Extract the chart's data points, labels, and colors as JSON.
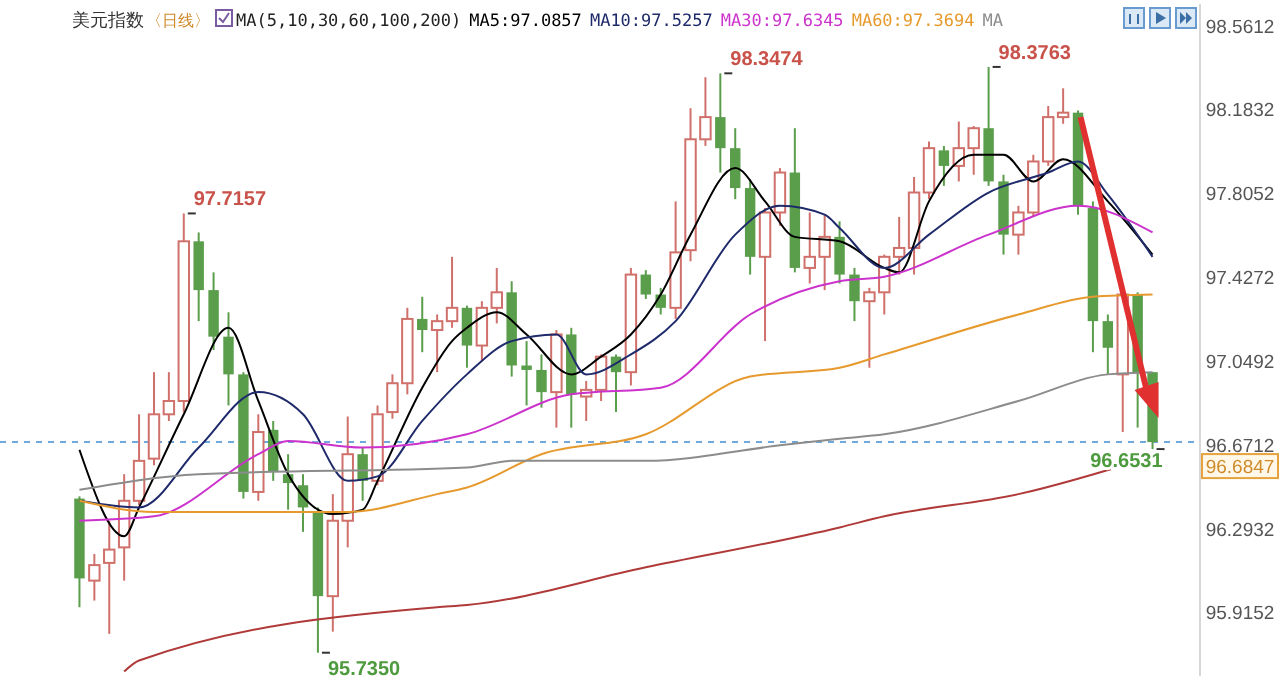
{
  "chart_data": {
    "type": "candlestick",
    "title": "美元指数",
    "subtitle": "〈日线〉",
    "categories": [
      null,
      null,
      null,
      null,
      null,
      null,
      null,
      null,
      null,
      null,
      null,
      null,
      null,
      null,
      null,
      null,
      null,
      null,
      null,
      null,
      null,
      null,
      null,
      null,
      null,
      null,
      null,
      null,
      null,
      null,
      null,
      null,
      null,
      null,
      null,
      null,
      null,
      null,
      null,
      null,
      null,
      null,
      null,
      null,
      null,
      null,
      null,
      null,
      null,
      null,
      null,
      null,
      null,
      null,
      null,
      null,
      null,
      null,
      null,
      null,
      null,
      null,
      null,
      null,
      null,
      null,
      null,
      null,
      null,
      null,
      null,
      null,
      null
    ],
    "ohlc": [
      [
        96.43,
        96.44,
        95.94,
        96.07
      ],
      [
        96.06,
        96.18,
        95.97,
        96.13
      ],
      [
        96.14,
        96.33,
        95.82,
        96.2
      ],
      [
        96.21,
        96.54,
        96.06,
        96.42
      ],
      [
        96.42,
        96.81,
        96.4,
        96.6
      ],
      [
        96.61,
        97.0,
        96.58,
        96.81
      ],
      [
        96.81,
        97.0,
        96.78,
        96.87
      ],
      [
        96.87,
        97.7157,
        96.82,
        97.59
      ],
      [
        97.59,
        97.63,
        97.23,
        97.37
      ],
      [
        97.37,
        97.45,
        97.1,
        97.16
      ],
      [
        97.16,
        97.27,
        96.85,
        96.99
      ],
      [
        96.99,
        97.0,
        96.43,
        96.46
      ],
      [
        96.46,
        96.81,
        96.42,
        96.73
      ],
      [
        96.74,
        96.78,
        96.51,
        96.55
      ],
      [
        96.54,
        96.63,
        96.38,
        96.5
      ],
      [
        96.49,
        96.54,
        96.28,
        96.39
      ],
      [
        96.37,
        96.39,
        95.735,
        95.99
      ],
      [
        95.99,
        96.45,
        95.83,
        96.33
      ],
      [
        96.33,
        96.8,
        96.21,
        96.63
      ],
      [
        96.63,
        96.66,
        96.42,
        96.51
      ],
      [
        96.51,
        96.85,
        96.49,
        96.81
      ],
      [
        96.82,
        96.99,
        96.79,
        96.95
      ],
      [
        96.95,
        97.29,
        96.9,
        97.24
      ],
      [
        97.24,
        97.34,
        97.09,
        97.19
      ],
      [
        97.19,
        97.26,
        97.0,
        97.23
      ],
      [
        97.23,
        97.52,
        97.2,
        97.29
      ],
      [
        97.29,
        97.3,
        97.02,
        97.12
      ],
      [
        97.12,
        97.32,
        97.05,
        97.29
      ],
      [
        97.29,
        97.47,
        97.22,
        97.36
      ],
      [
        97.36,
        97.41,
        96.98,
        97.03
      ],
      [
        97.03,
        97.14,
        96.85,
        97.01
      ],
      [
        97.01,
        97.08,
        96.84,
        96.91
      ],
      [
        96.91,
        97.19,
        96.75,
        97.17
      ],
      [
        97.17,
        97.2,
        96.75,
        96.9
      ],
      [
        96.89,
        96.96,
        96.78,
        96.92
      ],
      [
        96.92,
        97.08,
        96.87,
        97.07
      ],
      [
        97.07,
        97.08,
        96.82,
        97.0
      ],
      [
        97.0,
        97.47,
        96.94,
        97.44
      ],
      [
        97.44,
        97.46,
        97.33,
        97.35
      ],
      [
        97.35,
        97.38,
        97.26,
        97.29
      ],
      [
        97.29,
        97.77,
        97.24,
        97.54
      ],
      [
        97.55,
        98.19,
        97.5,
        98.05
      ],
      [
        98.05,
        98.33,
        98.02,
        98.15
      ],
      [
        98.15,
        98.3474,
        97.9,
        98.01
      ],
      [
        98.01,
        98.1,
        97.78,
        97.83
      ],
      [
        97.83,
        97.87,
        97.44,
        97.52
      ],
      [
        97.52,
        97.74,
        97.14,
        97.72
      ],
      [
        97.72,
        97.92,
        97.66,
        97.9
      ],
      [
        97.9,
        98.1,
        97.45,
        97.47
      ],
      [
        97.47,
        97.72,
        97.4,
        97.52
      ],
      [
        97.52,
        97.71,
        97.37,
        97.61
      ],
      [
        97.61,
        97.68,
        97.4,
        97.44
      ],
      [
        97.44,
        97.47,
        97.23,
        97.32
      ],
      [
        97.32,
        97.38,
        97.02,
        97.36
      ],
      [
        97.36,
        97.53,
        97.26,
        97.52
      ],
      [
        97.52,
        97.7,
        97.44,
        97.56
      ],
      [
        97.56,
        97.88,
        97.44,
        97.81
      ],
      [
        97.81,
        98.04,
        97.78,
        98.01
      ],
      [
        98.0,
        98.02,
        97.84,
        97.93
      ],
      [
        97.93,
        98.13,
        97.86,
        98.01
      ],
      [
        98.01,
        98.11,
        97.89,
        98.1
      ],
      [
        98.1,
        98.3763,
        97.84,
        97.86
      ],
      [
        97.86,
        97.89,
        97.53,
        97.62
      ],
      [
        97.62,
        97.75,
        97.53,
        97.72
      ],
      [
        97.72,
        97.98,
        97.7,
        97.95
      ],
      [
        97.95,
        98.2,
        97.93,
        98.15
      ],
      [
        98.15,
        98.28,
        98.12,
        98.17
      ],
      [
        98.17,
        98.18,
        97.71,
        97.75
      ],
      [
        97.74,
        97.77,
        97.09,
        97.23
      ],
      [
        97.23,
        97.26,
        96.99,
        97.11
      ],
      [
        96.99,
        97.36,
        96.73,
        97.35
      ],
      [
        97.35,
        97.36,
        96.75,
        97.0
      ],
      [
        97.0,
        97.0,
        96.6531,
        96.6847
      ]
    ],
    "series": [
      {
        "type": "line",
        "name": "MA5:97.0857",
        "color": "#000000",
        "values": [
          96.65,
          null,
          null,
          96.26,
          96.39,
          null,
          null,
          96.81,
          null,
          null,
          97.2,
          null,
          96.87,
          null,
          96.54,
          null,
          null,
          96.36,
          null,
          96.38,
          96.51,
          null,
          null,
          96.93,
          null,
          97.14,
          97.2,
          null,
          97.27,
          null,
          97.17,
          null,
          null,
          96.99,
          null,
          97.07,
          null,
          97.17,
          null,
          97.35,
          null,
          97.62,
          null,
          null,
          97.92,
          null,
          97.77,
          null,
          97.61,
          null,
          null,
          97.59,
          null,
          null,
          97.47,
          97.45,
          null,
          97.77,
          null,
          null,
          97.98,
          null,
          97.98,
          null,
          97.86,
          null,
          97.96,
          null,
          null,
          97.77,
          null,
          null,
          97.53
        ]
      },
      {
        "type": "line",
        "name": "MA10:97.5257",
        "color": "#1f2a6b",
        "values": [
          96.42,
          null,
          null,
          null,
          96.39,
          null,
          null,
          null,
          96.66,
          null,
          null,
          null,
          96.91,
          null,
          null,
          96.81,
          null,
          null,
          96.51,
          null,
          96.53,
          null,
          null,
          96.78,
          null,
          null,
          96.99,
          null,
          null,
          97.14,
          null,
          null,
          97.17,
          null,
          96.99,
          null,
          null,
          97.08,
          null,
          null,
          97.23,
          null,
          null,
          null,
          97.62,
          null,
          null,
          97.75,
          null,
          null,
          97.71,
          97.65,
          null,
          null,
          97.47,
          null,
          null,
          97.62,
          null,
          null,
          null,
          97.81,
          null,
          null,
          null,
          97.9,
          null,
          97.95,
          null,
          97.8,
          null,
          null,
          97.52
        ]
      },
      {
        "type": "line",
        "name": "MA30:97.6345",
        "color": "#cc33cc",
        "values": [
          96.33,
          null,
          null,
          null,
          null,
          96.35,
          null,
          null,
          null,
          null,
          null,
          null,
          96.63,
          null,
          96.69,
          null,
          null,
          null,
          null,
          96.66,
          null,
          null,
          null,
          null,
          null,
          null,
          96.72,
          null,
          null,
          null,
          null,
          null,
          null,
          96.9,
          null,
          null,
          null,
          null,
          null,
          96.93,
          null,
          null,
          null,
          null,
          null,
          97.26,
          null,
          null,
          null,
          null,
          null,
          97.41,
          null,
          null,
          97.43,
          null,
          null,
          null,
          null,
          null,
          null,
          97.62,
          null,
          null,
          null,
          null,
          null,
          97.75,
          null,
          null,
          null,
          null,
          97.63
        ]
      },
      {
        "type": "line",
        "name": "MA60:97.3694",
        "color": "#e69a2e",
        "values": [
          96.42,
          null,
          null,
          null,
          null,
          96.37,
          null,
          null,
          null,
          null,
          null,
          null,
          96.37,
          null,
          null,
          null,
          null,
          null,
          96.37,
          null,
          null,
          null,
          null,
          null,
          96.45,
          null,
          96.48,
          null,
          null,
          null,
          null,
          96.63,
          null,
          null,
          null,
          null,
          null,
          null,
          96.72,
          null,
          null,
          null,
          null,
          null,
          null,
          96.98,
          null,
          null,
          null,
          null,
          null,
          97.02,
          null,
          null,
          97.08,
          null,
          null,
          null,
          null,
          null,
          null,
          null,
          null,
          97.26,
          null,
          null,
          null,
          null,
          97.34,
          null,
          null,
          null,
          97.35
        ]
      },
      {
        "type": "line",
        "name": "MA",
        "color": "#8c8c8c",
        "values": [
          96.47,
          null,
          null,
          null,
          null,
          null,
          null,
          null,
          96.54,
          null,
          null,
          null,
          null,
          null,
          null,
          null,
          null,
          null,
          null,
          null,
          null,
          null,
          null,
          null,
          null,
          null,
          96.57,
          null,
          null,
          96.6,
          null,
          null,
          null,
          null,
          null,
          null,
          null,
          null,
          96.6,
          null,
          null,
          null,
          null,
          null,
          null,
          null,
          null,
          96.67,
          null,
          null,
          null,
          96.7,
          null,
          null,
          96.72,
          null,
          null,
          null,
          null,
          null,
          null,
          null,
          null,
          96.87,
          null,
          null,
          null,
          null,
          null,
          96.99,
          null,
          null,
          97.0
        ]
      },
      {
        "type": "line",
        "color": "#b03a3a",
        "values": [
          null,
          null,
          null,
          95.65,
          95.7,
          null,
          null,
          null,
          null,
          null,
          null,
          null,
          null,
          null,
          null,
          null,
          null,
          null,
          null,
          null,
          null,
          null,
          null,
          null,
          95.94,
          null,
          95.95,
          null,
          null,
          null,
          null,
          null,
          null,
          null,
          null,
          null,
          null,
          null,
          96.12,
          null,
          null,
          null,
          null,
          null,
          null,
          null,
          null,
          null,
          null,
          null,
          null,
          96.3,
          null,
          null,
          96.35,
          null,
          null,
          null,
          null,
          null,
          null,
          null,
          null,
          96.45,
          null,
          null,
          null,
          null,
          null,
          null,
          null,
          null,
          96.62
        ]
      }
    ],
    "ylim": [
      95.63,
      98.66
    ],
    "yticks": [
      98.5612,
      98.1832,
      97.8052,
      97.4272,
      97.0492,
      96.6712,
      96.2932,
      95.9152
    ],
    "ref_lines": [
      {
        "axis": "y",
        "value": 96.6847,
        "label": "96.6847",
        "color": "#6fa8dc",
        "line_style": "dashed"
      }
    ],
    "annotations": [
      "MA(5,10,30,60,100,200)",
      "97.7157",
      "95.7350",
      "98.3474",
      "98.3763",
      "96.6531"
    ],
    "legend": "top",
    "grid": false
  }
}
